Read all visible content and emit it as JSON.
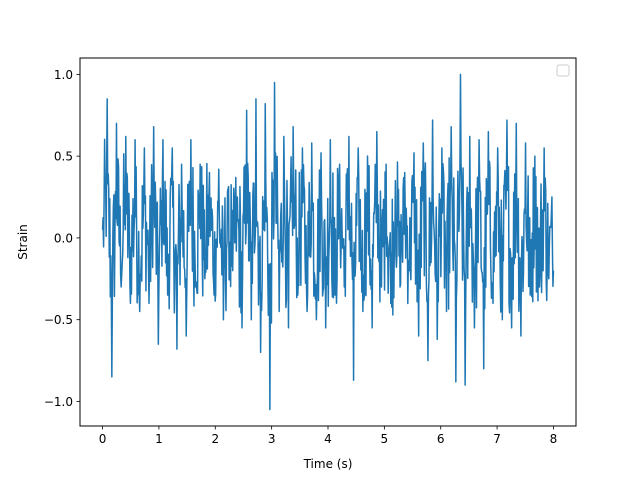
{
  "chart_data": {
    "type": "line",
    "title": "",
    "xlabel": "Time (s)",
    "ylabel": "Strain",
    "xlim": [
      -0.4,
      8.4
    ],
    "ylim": [
      -1.15,
      1.1
    ],
    "x_ticks": [
      0,
      1,
      2,
      3,
      4,
      5,
      6,
      7,
      8
    ],
    "y_ticks": [
      -1.0,
      -0.5,
      0.0,
      0.5,
      1.0
    ],
    "x_tick_labels": [
      "0",
      "1",
      "2",
      "3",
      "4",
      "5",
      "6",
      "7",
      "8"
    ],
    "y_tick_labels": [
      "−1.0",
      "−0.5",
      "0.0",
      "0.5",
      "1.0"
    ],
    "grid": false,
    "legend": {
      "placement": "top-right",
      "entries": []
    },
    "series": [
      {
        "color": "#1f77b4",
        "x_range": [
          0,
          8
        ],
        "values": [
          0.05,
          0.85,
          -0.85,
          0.7,
          -0.3,
          0.62,
          -0.4,
          0.6,
          -0.45,
          0.55,
          -0.4,
          0.68,
          -0.65,
          0.6,
          -0.35,
          0.55,
          -0.68,
          0.45,
          -0.6,
          0.6,
          -0.3,
          0.45,
          -0.25,
          0.4,
          -0.35,
          0.42,
          -0.5,
          0.3,
          -0.2,
          0.25,
          -0.55,
          0.78,
          -0.5,
          0.85,
          -0.7,
          0.82,
          -1.05,
          0.95,
          -0.45,
          0.62,
          -0.55,
          0.68,
          -0.35,
          0.55,
          -0.45,
          0.58,
          -0.5,
          0.52,
          -0.55,
          0.6,
          -0.35,
          0.45,
          -0.3,
          0.62,
          -0.87,
          0.55,
          -0.45,
          0.5,
          -0.55,
          0.65,
          -0.3,
          0.45,
          -0.4,
          0.35,
          -0.3,
          0.4,
          -0.2,
          0.52,
          -0.6,
          0.58,
          -0.75,
          0.72,
          -0.62,
          0.55,
          -0.45,
          0.68,
          -0.88,
          1.0,
          -0.9,
          0.62,
          -0.55,
          0.6,
          -0.8,
          0.65,
          -0.4,
          0.55,
          -0.5,
          0.72,
          -0.55,
          0.7,
          -0.6,
          0.58,
          -0.35,
          0.5,
          -0.3,
          0.55,
          -0.25,
          -0.2
        ]
      }
    ]
  }
}
